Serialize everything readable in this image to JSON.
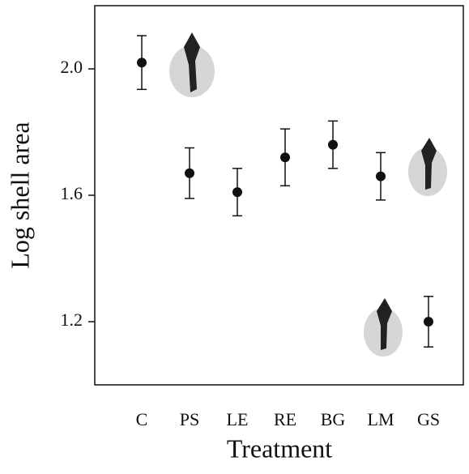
{
  "chart_data": {
    "type": "errorbar",
    "xlabel": "Treatment",
    "ylabel": "Log shell area",
    "categories": [
      "C",
      "PS",
      "LE",
      "RE",
      "BG",
      "LM",
      "GS"
    ],
    "values": [
      2.02,
      1.67,
      1.61,
      1.72,
      1.76,
      1.66,
      1.2
    ],
    "errors": [
      0.085,
      0.08,
      0.075,
      0.09,
      0.075,
      0.075,
      0.08
    ],
    "color": "#111111",
    "ylim": [
      1.0,
      2.2
    ],
    "yticks": [
      {
        "value": 1.2,
        "label": "1.2"
      },
      {
        "value": 1.6,
        "label": "1.6"
      },
      {
        "value": 2.0,
        "label": "2.0"
      }
    ]
  }
}
